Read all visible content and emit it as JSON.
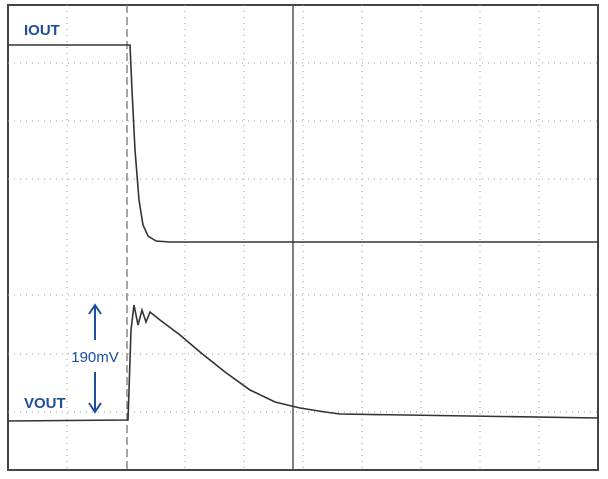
{
  "labels": {
    "iout": "IOUT",
    "vout": "VOUT",
    "step": "190mV"
  }
}
